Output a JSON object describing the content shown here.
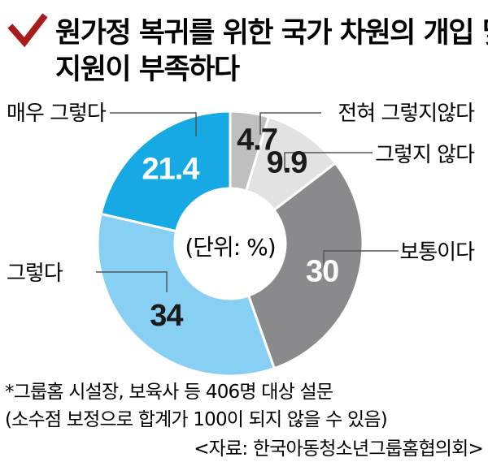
{
  "title": {
    "line1": "원가정 복귀를 위한 국가 차원의 개입 및",
    "line2": "지원이 부족하다"
  },
  "chart_data": {
    "type": "pie",
    "variant": "donut",
    "title": "원가정 복귀를 위한 국가 차원의 개입 및 지원이 부족하다",
    "unit_label": "(단위: %)",
    "start_angle_deg": 0,
    "direction": "clockwise",
    "slices": [
      {
        "label": "전혀 그렇지않다",
        "value": 4.7,
        "color": "#bfbfbf"
      },
      {
        "label": "그렇지 않다",
        "value": 9.9,
        "color": "#e2e2e2"
      },
      {
        "label": "보통이다",
        "value": 30.0,
        "color": "#8a8a8d"
      },
      {
        "label": "그렇다",
        "value": 34.0,
        "color": "#87d0f3"
      },
      {
        "label": "매우 그렇다",
        "value": 21.4,
        "color": "#17a9e3"
      }
    ]
  },
  "notes": {
    "survey": "*그룹홈 시설장, 보육사 등 406명 대상 설문",
    "rounding": "(소수점 보정으로 합계가 100이 되지 않을 수 있음)",
    "source": "<자료: 한국아동청소년그룹홈협의회>"
  },
  "colors": {
    "check_mark": "#a81c1c",
    "leader_line": "#555555",
    "text": "#1a1a1a",
    "value_text_dark": "#1a1a1a",
    "value_text_light": "#ffffff"
  },
  "icons": {
    "title_marker": "check-mark-icon"
  }
}
